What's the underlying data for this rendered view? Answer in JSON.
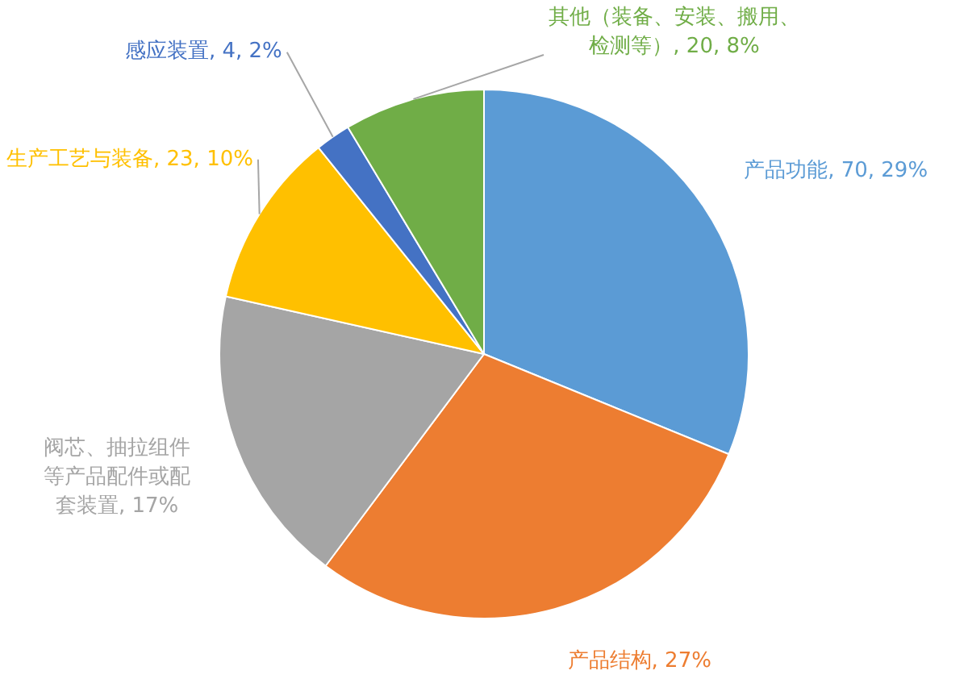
{
  "chart_data": {
    "type": "pie",
    "categories": [
      "产品功能",
      "产品结构",
      "阀芯、抽拉组件等产品配件或配套装置",
      "生产工艺与装备",
      "感应装置",
      "其他（装备、安装、搬用、检测等）"
    ],
    "values": [
      29,
      27,
      17,
      10,
      2,
      8
    ],
    "value_labels": [
      "70, 29%",
      "27%",
      "17%",
      "23, 10%",
      "4, 2%",
      "20, 8%"
    ],
    "colors": [
      "#5b9bd5",
      "#ed7d31",
      "#a5a5a5",
      "#ffc000",
      "#4472c4",
      "#70ad47"
    ],
    "legend": false
  }
}
